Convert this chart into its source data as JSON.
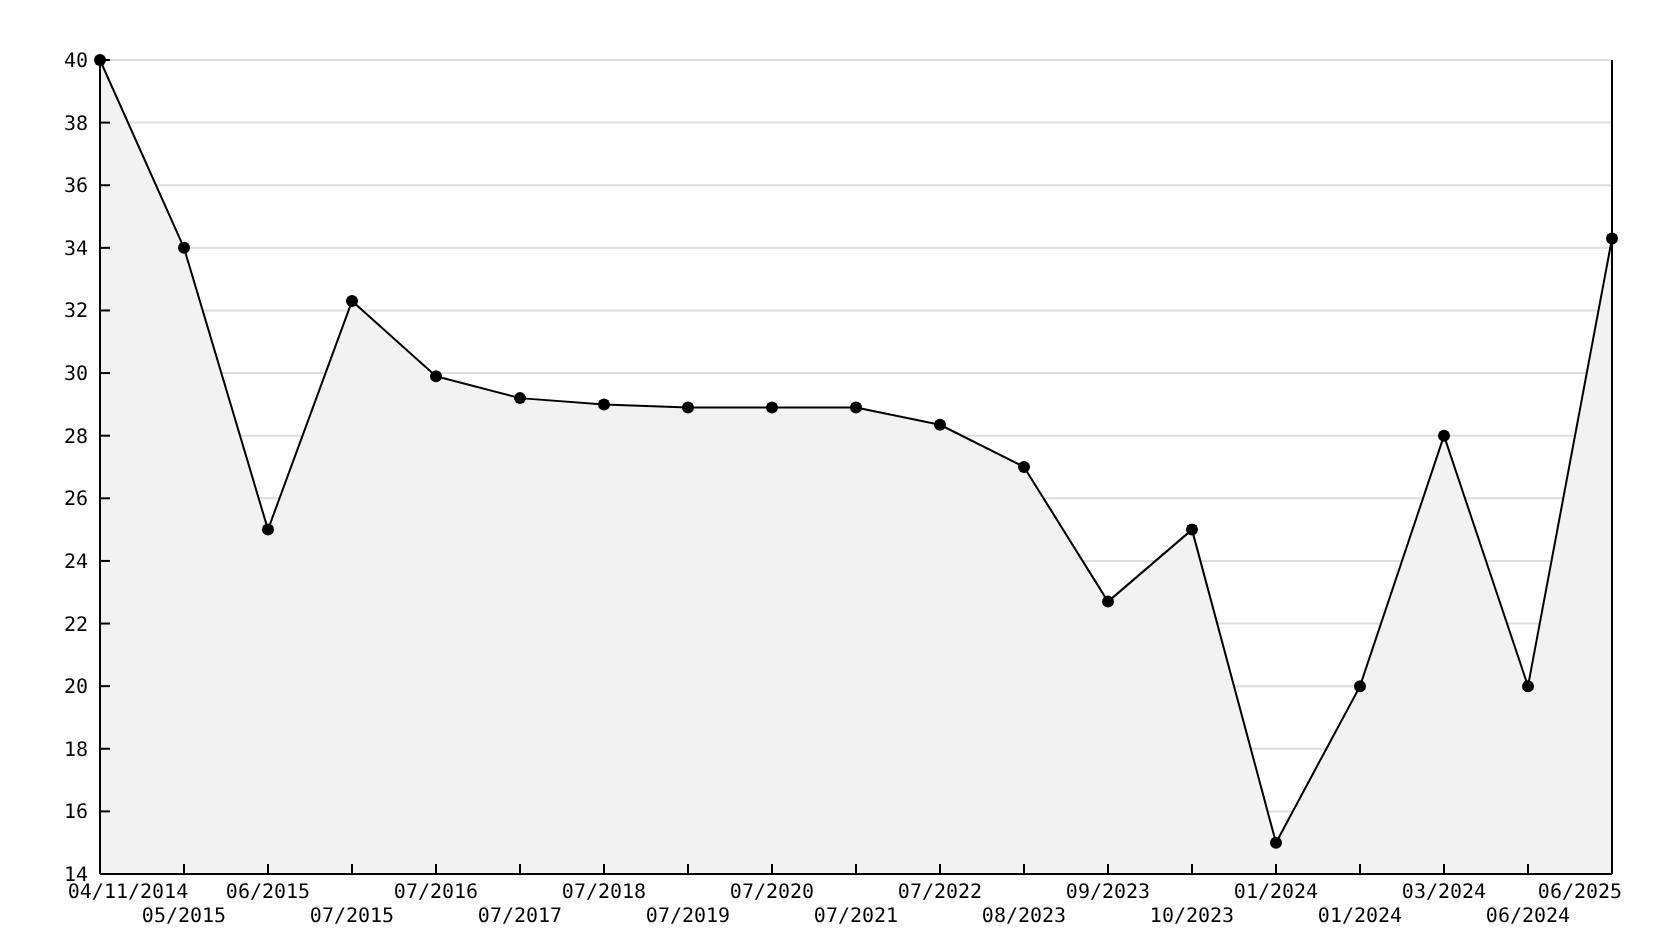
{
  "chart_data": {
    "type": "area",
    "categories": [
      "04/11/2014",
      "05/2015",
      "06/2015",
      "07/2015",
      "07/2016",
      "07/2017",
      "07/2018",
      "07/2019",
      "07/2020",
      "07/2021",
      "07/2022",
      "08/2023",
      "09/2023",
      "10/2023",
      "01/2024",
      "01/2024",
      "03/2024",
      "06/2024",
      "06/2025"
    ],
    "series": [
      {
        "color": "#000000",
        "values": [
          40,
          34,
          25,
          32.3,
          29.9,
          29.2,
          29.0,
          28.9,
          28.9,
          28.9,
          28.35,
          27,
          22.7,
          25,
          15,
          20,
          28,
          20,
          34.3
        ]
      }
    ],
    "ylim": [
      14,
      40
    ],
    "yticks": [
      14,
      16,
      18,
      20,
      22,
      24,
      26,
      28,
      30,
      32,
      34,
      36,
      38,
      40
    ],
    "grid": "y",
    "marker": "circle"
  }
}
